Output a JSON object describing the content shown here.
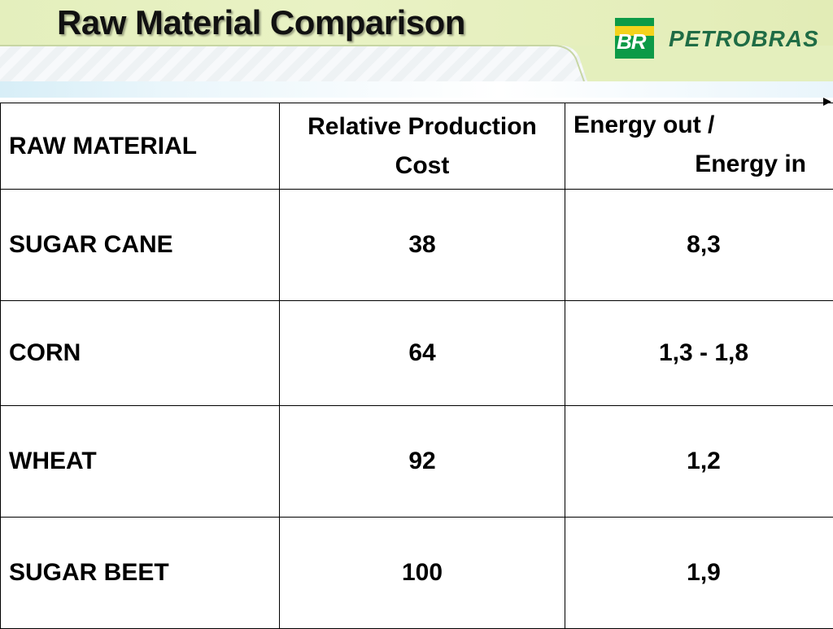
{
  "header": {
    "title": "Raw Material Comparison",
    "logo_mark": "BR",
    "brand_name": "PETROBRAS"
  },
  "table": {
    "headers": {
      "raw_material": "RAW MATERIAL",
      "cost_line1": "Relative Production",
      "cost_line2": "Cost",
      "energy_line1": "Energy out /",
      "energy_line2": "Energy in"
    },
    "rows": [
      {
        "material": "SUGAR CANE",
        "cost": "38",
        "energy": "8,3"
      },
      {
        "material": "CORN",
        "cost": "64",
        "energy": "1,3 - 1,8"
      },
      {
        "material": "WHEAT",
        "cost": "92",
        "energy": "1,2"
      },
      {
        "material": "SUGAR BEET",
        "cost": "100",
        "energy": "1,9"
      }
    ]
  },
  "colors": {
    "header_green": "#e4efbd",
    "brand_green": "#0c9a47",
    "brand_yellow": "#f4d21d",
    "brand_text": "#1f6c45"
  }
}
